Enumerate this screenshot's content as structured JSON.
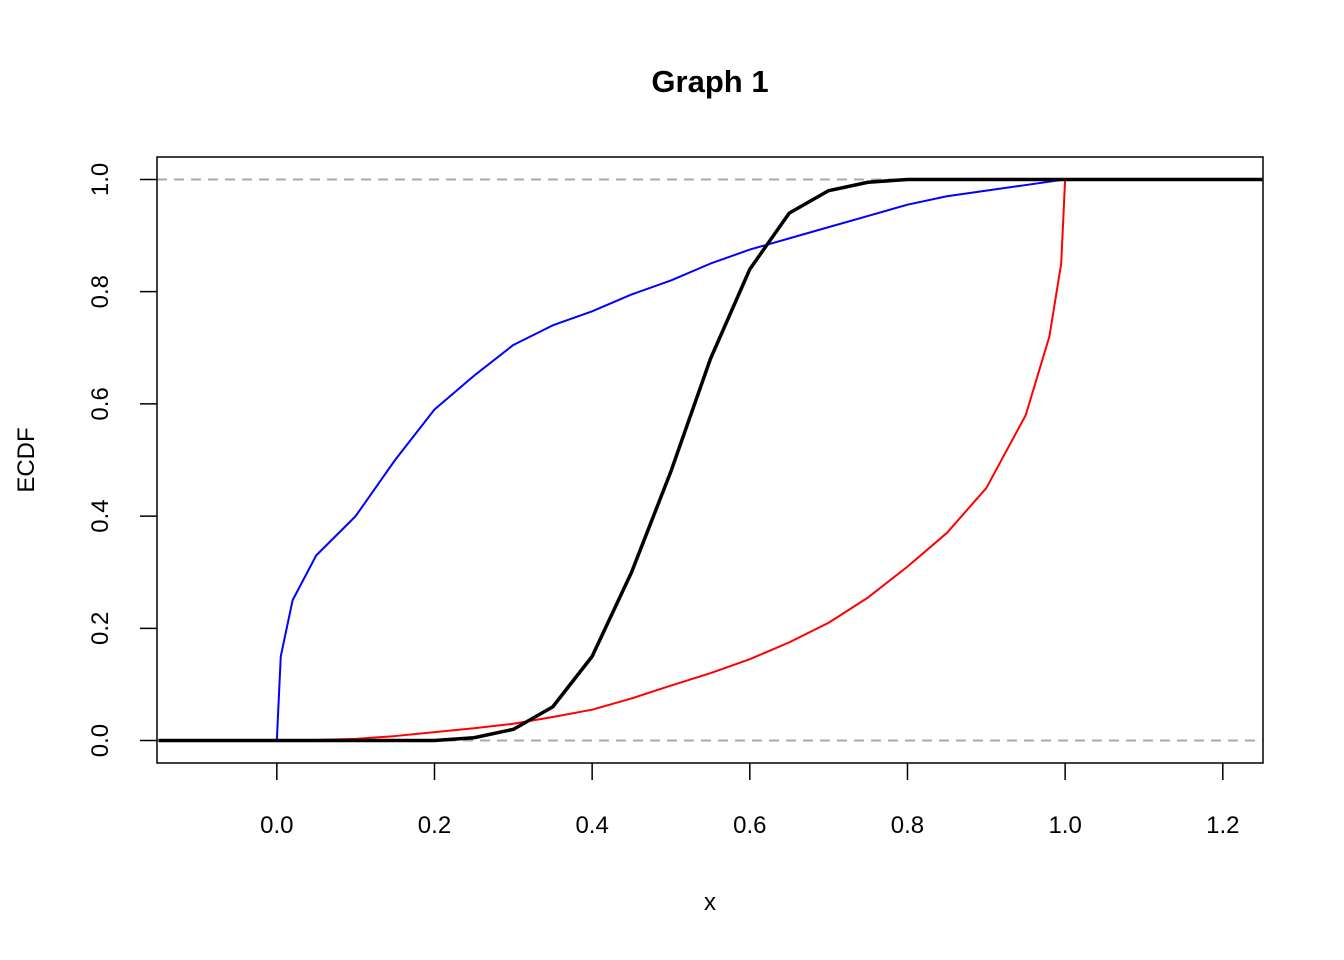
{
  "chart_data": {
    "type": "line",
    "title": "Graph 1",
    "x_label": "x",
    "y_label": "ECDF",
    "x": [
      -0.15,
      0,
      0.005,
      0.02,
      0.05,
      0.1,
      0.15,
      0.2,
      0.25,
      0.3,
      0.35,
      0.4,
      0.45,
      0.5,
      0.55,
      0.6,
      0.65,
      0.7,
      0.75,
      0.8,
      0.85,
      0.9,
      0.95,
      0.98,
      0.995,
      1.0,
      1.25
    ],
    "series": [
      {
        "color": "#0000ff",
        "width": 2,
        "values": [
          0,
          0,
          0.15,
          0.25,
          0.33,
          0.4,
          0.5,
          0.59,
          0.65,
          0.705,
          0.74,
          0.765,
          0.795,
          0.82,
          0.85,
          0.875,
          0.895,
          0.915,
          0.935,
          0.955,
          0.97,
          0.98,
          0.99,
          0.996,
          0.999,
          1,
          1
        ]
      },
      {
        "color": "#ff0000",
        "width": 2,
        "values": [
          0,
          0,
          0,
          0,
          0.001,
          0.003,
          0.008,
          0.015,
          0.022,
          0.03,
          0.042,
          0.055,
          0.075,
          0.098,
          0.12,
          0.145,
          0.175,
          0.21,
          0.255,
          0.31,
          0.37,
          0.45,
          0.58,
          0.72,
          0.85,
          1,
          1
        ]
      },
      {
        "color": "#000000",
        "width": 3.5,
        "values": [
          0,
          0,
          0,
          0,
          0,
          0,
          0,
          0,
          0.005,
          0.02,
          0.06,
          0.15,
          0.3,
          0.48,
          0.68,
          0.84,
          0.94,
          0.98,
          0.995,
          1,
          1,
          1,
          1,
          1,
          1,
          1,
          1
        ]
      }
    ],
    "hlines": [
      0,
      1
    ],
    "hline_color": "#aaaaaa",
    "xlim": [
      -0.152,
      1.251
    ],
    "ylim": [
      -0.04,
      1.04
    ],
    "xticks": [
      {
        "value": 0,
        "label": "0.0"
      },
      0.2,
      0.4,
      0.6,
      0.8,
      {
        "value": 1,
        "label": "1.0"
      },
      1.2
    ],
    "yticks": [
      {
        "value": 0,
        "label": "0.0"
      },
      0.2,
      0.4,
      0.6,
      0.8,
      {
        "value": 1,
        "label": "1.0"
      }
    ]
  }
}
